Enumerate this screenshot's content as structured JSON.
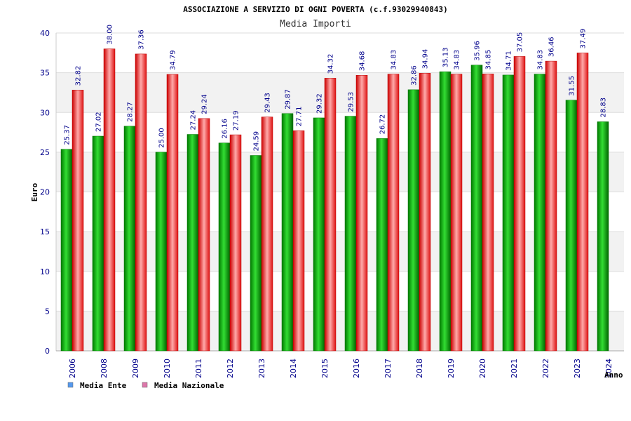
{
  "chart_data": {
    "type": "bar",
    "title": "ASSOCIAZIONE A SERVIZIO DI OGNI POVERTA (c.f.93029940843)",
    "subtitle": "Media Importi",
    "xlabel": "Anno",
    "ylabel": "Euro",
    "ylim": [
      0,
      40
    ],
    "yticks": [
      0,
      5,
      10,
      15,
      20,
      25,
      30,
      35,
      40
    ],
    "grid": true,
    "legend_position": "bottom-left",
    "categories": [
      "2006",
      "2008",
      "2009",
      "2010",
      "2011",
      "2012",
      "2013",
      "2014",
      "2015",
      "2016",
      "2017",
      "2018",
      "2019",
      "2020",
      "2021",
      "2022",
      "2023",
      "2024"
    ],
    "series": [
      {
        "name": "Media Ente",
        "color": "#00aa00",
        "legend_color": "#5599ee",
        "values": [
          25.37,
          27.02,
          28.27,
          25.0,
          27.24,
          26.16,
          24.59,
          29.87,
          29.32,
          29.53,
          26.72,
          32.86,
          35.13,
          35.96,
          34.71,
          34.83,
          31.55,
          28.83
        ],
        "labels": [
          "25.37",
          "27.02",
          "28.27",
          "25.00",
          "27.24",
          "26.16",
          "24.59",
          "29.87",
          "29.32",
          "29.53",
          "26.72",
          "32.86",
          "35.13",
          "35.96",
          "34.71",
          "34.83",
          "31.55",
          "28.83"
        ]
      },
      {
        "name": "Media Nazionale",
        "color": "#ee1111",
        "legend_color": "#dd77aa",
        "values": [
          32.82,
          38.0,
          37.36,
          34.79,
          29.24,
          27.19,
          29.43,
          27.71,
          34.32,
          34.68,
          34.83,
          34.94,
          34.83,
          34.85,
          37.05,
          36.46,
          37.49,
          null
        ],
        "labels": [
          "32.82",
          "38.00",
          "37.36",
          "34.79",
          "29.24",
          "27.19",
          "29.43",
          "27.71",
          "34.32",
          "34.68",
          "34.83",
          "34.94",
          "34.83",
          "34.85",
          "37.05",
          "36.46",
          "37.49",
          ""
        ]
      }
    ]
  }
}
